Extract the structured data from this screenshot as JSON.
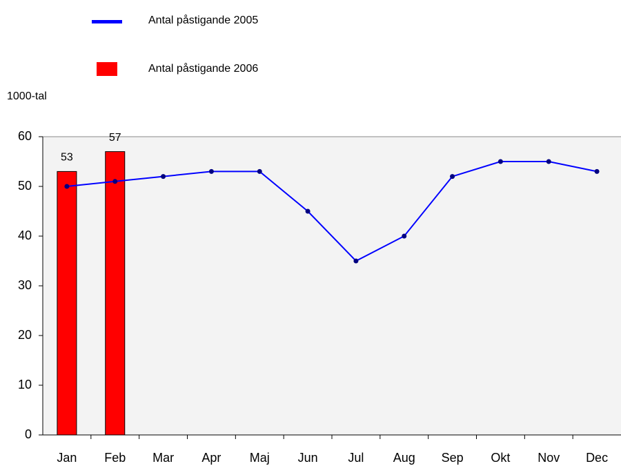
{
  "chart_data": {
    "type": "bar",
    "y_axis_label": "1000-tal",
    "categories": [
      "Jan",
      "Feb",
      "Mar",
      "Apr",
      "Maj",
      "Jun",
      "Jul",
      "Aug",
      "Sep",
      "Okt",
      "Nov",
      "Dec"
    ],
    "series": [
      {
        "name": "Antal påstigande 2005",
        "type": "line",
        "color": "#0000ff",
        "values": [
          50,
          51,
          52,
          53,
          53,
          45,
          35,
          40,
          52,
          55,
          55,
          53
        ]
      },
      {
        "name": "Antal påstigande 2006",
        "type": "bar",
        "color": "#ff0000",
        "data_labels": true,
        "values": [
          53,
          57,
          null,
          null,
          null,
          null,
          null,
          null,
          null,
          null,
          null,
          null
        ]
      }
    ],
    "ylim": [
      0,
      60
    ],
    "yticks": [
      0,
      10,
      20,
      30,
      40,
      50,
      60
    ]
  }
}
